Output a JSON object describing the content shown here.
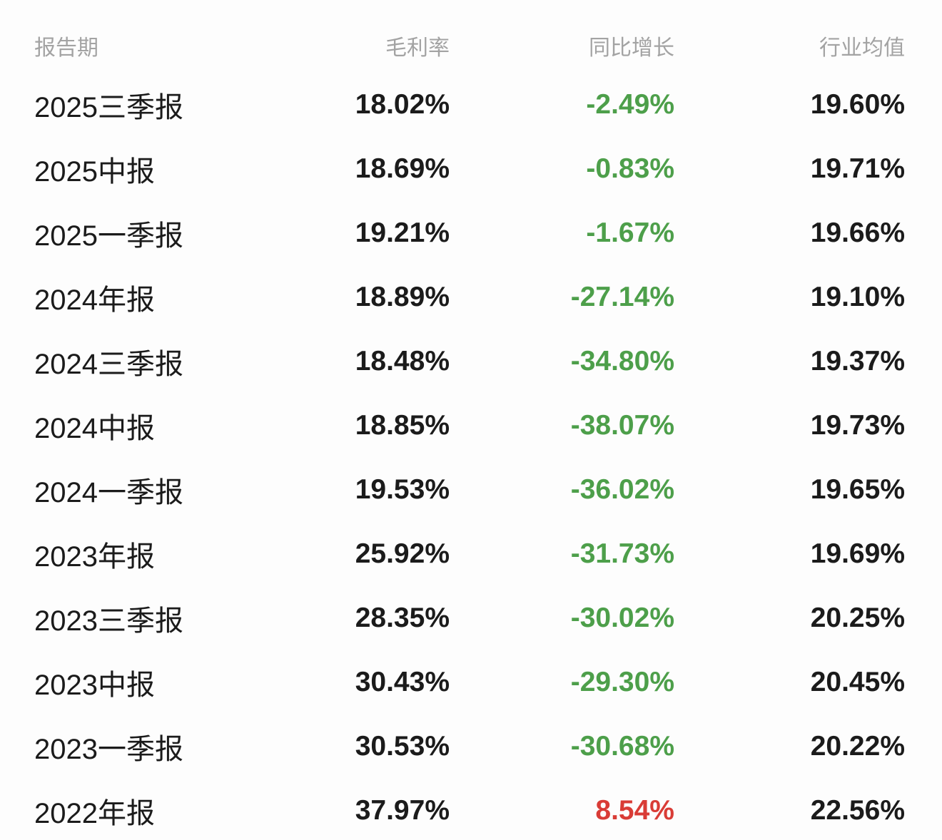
{
  "colors": {
    "background": "#fdfdfd",
    "text_primary": "#1b1b1b",
    "header_text": "#a3a3a3",
    "yoy_negative_green": "#4d9f4a",
    "yoy_positive_red": "#d93c36"
  },
  "table": {
    "header": {
      "period": "报告期",
      "gross_margin": "毛利率",
      "yoy_growth": "同比增长",
      "industry_avg": "行业均值"
    },
    "rows": [
      {
        "period": "2025三季报",
        "gross_margin": "18.02%",
        "yoy_growth": "-2.49%",
        "yoy_direction": "down",
        "industry_avg": "19.60%"
      },
      {
        "period": "2025中报",
        "gross_margin": "18.69%",
        "yoy_growth": "-0.83%",
        "yoy_direction": "down",
        "industry_avg": "19.71%"
      },
      {
        "period": "2025一季报",
        "gross_margin": "19.21%",
        "yoy_growth": "-1.67%",
        "yoy_direction": "down",
        "industry_avg": "19.66%"
      },
      {
        "period": "2024年报",
        "gross_margin": "18.89%",
        "yoy_growth": "-27.14%",
        "yoy_direction": "down",
        "industry_avg": "19.10%"
      },
      {
        "period": "2024三季报",
        "gross_margin": "18.48%",
        "yoy_growth": "-34.80%",
        "yoy_direction": "down",
        "industry_avg": "19.37%"
      },
      {
        "period": "2024中报",
        "gross_margin": "18.85%",
        "yoy_growth": "-38.07%",
        "yoy_direction": "down",
        "industry_avg": "19.73%"
      },
      {
        "period": "2024一季报",
        "gross_margin": "19.53%",
        "yoy_growth": "-36.02%",
        "yoy_direction": "down",
        "industry_avg": "19.65%"
      },
      {
        "period": "2023年报",
        "gross_margin": "25.92%",
        "yoy_growth": "-31.73%",
        "yoy_direction": "down",
        "industry_avg": "19.69%"
      },
      {
        "period": "2023三季报",
        "gross_margin": "28.35%",
        "yoy_growth": "-30.02%",
        "yoy_direction": "down",
        "industry_avg": "20.25%"
      },
      {
        "period": "2023中报",
        "gross_margin": "30.43%",
        "yoy_growth": "-29.30%",
        "yoy_direction": "down",
        "industry_avg": "20.45%"
      },
      {
        "period": "2023一季报",
        "gross_margin": "30.53%",
        "yoy_growth": "-30.68%",
        "yoy_direction": "down",
        "industry_avg": "20.22%"
      },
      {
        "period": "2022年报",
        "gross_margin": "37.97%",
        "yoy_growth": "8.54%",
        "yoy_direction": "up",
        "industry_avg": "22.56%"
      }
    ]
  }
}
